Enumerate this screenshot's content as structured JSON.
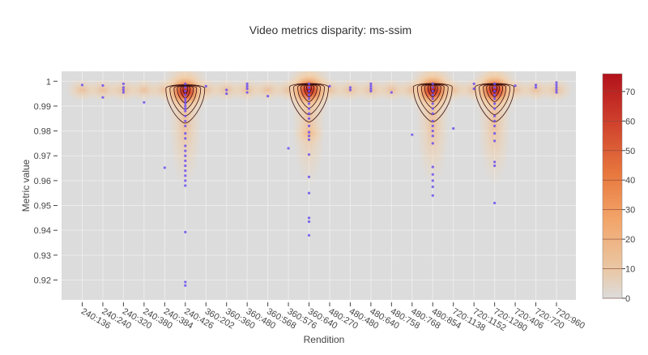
{
  "chart_data": {
    "type": "scatter",
    "title": "Video metrics disparity: ms-ssim",
    "xlabel": "Rendition",
    "ylabel": "Metric value",
    "ylim": [
      0.912,
      1.004
    ],
    "yticks": [
      "0.92",
      "0.93",
      "0.94",
      "0.95",
      "0.96",
      "0.97",
      "0.98",
      "0.99",
      "1"
    ],
    "categories": [
      "240:136",
      "240:240",
      "240:320",
      "240:380",
      "240:384",
      "240:426",
      "360:202",
      "360:360",
      "360:480",
      "360:568",
      "360:576",
      "360:640",
      "480:270",
      "480:480",
      "480:640",
      "480:758",
      "480:768",
      "480:854",
      "720:1138",
      "720:1152",
      "720:1280",
      "720:406",
      "720:720",
      "720:960"
    ],
    "colorbar": {
      "ticks": [
        0,
        10,
        20,
        30,
        40,
        50,
        60,
        70
      ],
      "range": [
        0,
        76
      ]
    },
    "colors": {
      "plot_bg": "#dcdcdc",
      "marker": "#6b4ff0",
      "contour": "#3a1010",
      "colorbar_low": "#dcdcdc",
      "colorbar_high": "#b2121b"
    },
    "grid": true,
    "legend": "colorbar-right",
    "points": [
      {
        "x": "240:136",
        "y": 0.9985
      },
      {
        "x": "240:240",
        "y": 0.9983
      },
      {
        "x": "240:240",
        "y": 0.9935
      },
      {
        "x": "240:320",
        "y": 0.999
      },
      {
        "x": "240:320",
        "y": 0.9975
      },
      {
        "x": "240:320",
        "y": 0.9965
      },
      {
        "x": "240:320",
        "y": 0.9955
      },
      {
        "x": "240:380",
        "y": 0.9915
      },
      {
        "x": "240:384",
        "y": 0.9652
      },
      {
        "x": "240:426",
        "y": 0.999
      },
      {
        "x": "240:426",
        "y": 0.9975
      },
      {
        "x": "240:426",
        "y": 0.996
      },
      {
        "x": "240:426",
        "y": 0.9945
      },
      {
        "x": "240:426",
        "y": 0.993
      },
      {
        "x": "240:426",
        "y": 0.992
      },
      {
        "x": "240:426",
        "y": 0.991
      },
      {
        "x": "240:426",
        "y": 0.99
      },
      {
        "x": "240:426",
        "y": 0.989
      },
      {
        "x": "240:426",
        "y": 0.988
      },
      {
        "x": "240:426",
        "y": 0.986
      },
      {
        "x": "240:426",
        "y": 0.984
      },
      {
        "x": "240:426",
        "y": 0.982
      },
      {
        "x": "240:426",
        "y": 0.979
      },
      {
        "x": "240:426",
        "y": 0.977
      },
      {
        "x": "240:426",
        "y": 0.974
      },
      {
        "x": "240:426",
        "y": 0.972
      },
      {
        "x": "240:426",
        "y": 0.97
      },
      {
        "x": "240:426",
        "y": 0.968
      },
      {
        "x": "240:426",
        "y": 0.966
      },
      {
        "x": "240:426",
        "y": 0.964
      },
      {
        "x": "240:426",
        "y": 0.962
      },
      {
        "x": "240:426",
        "y": 0.96
      },
      {
        "x": "240:426",
        "y": 0.958
      },
      {
        "x": "240:426",
        "y": 0.9393
      },
      {
        "x": "240:426",
        "y": 0.9192
      },
      {
        "x": "240:426",
        "y": 0.9178
      },
      {
        "x": "360:202",
        "y": 0.998
      },
      {
        "x": "360:360",
        "y": 0.9965
      },
      {
        "x": "360:360",
        "y": 0.995
      },
      {
        "x": "360:480",
        "y": 0.999
      },
      {
        "x": "360:480",
        "y": 0.998
      },
      {
        "x": "360:480",
        "y": 0.997
      },
      {
        "x": "360:480",
        "y": 0.9955
      },
      {
        "x": "360:568",
        "y": 0.994
      },
      {
        "x": "360:576",
        "y": 0.973
      },
      {
        "x": "360:640",
        "y": 0.999
      },
      {
        "x": "360:640",
        "y": 0.9975
      },
      {
        "x": "360:640",
        "y": 0.996
      },
      {
        "x": "360:640",
        "y": 0.9945
      },
      {
        "x": "360:640",
        "y": 0.993
      },
      {
        "x": "360:640",
        "y": 0.991
      },
      {
        "x": "360:640",
        "y": 0.989
      },
      {
        "x": "360:640",
        "y": 0.987
      },
      {
        "x": "360:640",
        "y": 0.985
      },
      {
        "x": "360:640",
        "y": 0.982
      },
      {
        "x": "360:640",
        "y": 0.9795
      },
      {
        "x": "360:640",
        "y": 0.978
      },
      {
        "x": "360:640",
        "y": 0.9765
      },
      {
        "x": "360:640",
        "y": 0.9705
      },
      {
        "x": "360:640",
        "y": 0.9615
      },
      {
        "x": "360:640",
        "y": 0.955
      },
      {
        "x": "360:640",
        "y": 0.945
      },
      {
        "x": "360:640",
        "y": 0.9435
      },
      {
        "x": "360:640",
        "y": 0.938
      },
      {
        "x": "480:270",
        "y": 0.998
      },
      {
        "x": "480:480",
        "y": 0.9975
      },
      {
        "x": "480:480",
        "y": 0.9965
      },
      {
        "x": "480:640",
        "y": 0.999
      },
      {
        "x": "480:640",
        "y": 0.998
      },
      {
        "x": "480:640",
        "y": 0.997
      },
      {
        "x": "480:640",
        "y": 0.996
      },
      {
        "x": "480:758",
        "y": 0.9955
      },
      {
        "x": "480:768",
        "y": 0.9785
      },
      {
        "x": "480:854",
        "y": 0.999
      },
      {
        "x": "480:854",
        "y": 0.9975
      },
      {
        "x": "480:854",
        "y": 0.996
      },
      {
        "x": "480:854",
        "y": 0.9945
      },
      {
        "x": "480:854",
        "y": 0.993
      },
      {
        "x": "480:854",
        "y": 0.991
      },
      {
        "x": "480:854",
        "y": 0.989
      },
      {
        "x": "480:854",
        "y": 0.987
      },
      {
        "x": "480:854",
        "y": 0.984
      },
      {
        "x": "480:854",
        "y": 0.982
      },
      {
        "x": "480:854",
        "y": 0.98
      },
      {
        "x": "480:854",
        "y": 0.978
      },
      {
        "x": "480:854",
        "y": 0.975
      },
      {
        "x": "480:854",
        "y": 0.9655
      },
      {
        "x": "480:854",
        "y": 0.9625
      },
      {
        "x": "480:854",
        "y": 0.96
      },
      {
        "x": "480:854",
        "y": 0.9575
      },
      {
        "x": "480:854",
        "y": 0.954
      },
      {
        "x": "720:1138",
        "y": 0.981
      },
      {
        "x": "720:1152",
        "y": 0.999
      },
      {
        "x": "720:1152",
        "y": 0.997
      },
      {
        "x": "720:1280",
        "y": 0.999
      },
      {
        "x": "720:1280",
        "y": 0.9975
      },
      {
        "x": "720:1280",
        "y": 0.996
      },
      {
        "x": "720:1280",
        "y": 0.9945
      },
      {
        "x": "720:1280",
        "y": 0.993
      },
      {
        "x": "720:1280",
        "y": 0.991
      },
      {
        "x": "720:1280",
        "y": 0.989
      },
      {
        "x": "720:1280",
        "y": 0.986
      },
      {
        "x": "720:1280",
        "y": 0.984
      },
      {
        "x": "720:1280",
        "y": 0.982
      },
      {
        "x": "720:1280",
        "y": 0.979
      },
      {
        "x": "720:1280",
        "y": 0.976
      },
      {
        "x": "720:1280",
        "y": 0.9675
      },
      {
        "x": "720:1280",
        "y": 0.966
      },
      {
        "x": "720:1280",
        "y": 0.951
      },
      {
        "x": "720:406",
        "y": 0.9982
      },
      {
        "x": "720:720",
        "y": 0.9985
      },
      {
        "x": "720:720",
        "y": 0.9975
      },
      {
        "x": "720:960",
        "y": 0.9995
      },
      {
        "x": "720:960",
        "y": 0.9985
      },
      {
        "x": "720:960",
        "y": 0.9975
      },
      {
        "x": "720:960",
        "y": 0.9965
      },
      {
        "x": "720:960",
        "y": 0.9955
      }
    ],
    "density_peaks": [
      {
        "x": "240:426",
        "y": 0.9965,
        "value": 75
      },
      {
        "x": "360:640",
        "y": 0.997,
        "value": 76
      },
      {
        "x": "480:854",
        "y": 0.997,
        "value": 75
      },
      {
        "x": "720:1280",
        "y": 0.997,
        "value": 74
      },
      {
        "x": "360:640",
        "y": 0.979,
        "value": 14
      }
    ]
  }
}
